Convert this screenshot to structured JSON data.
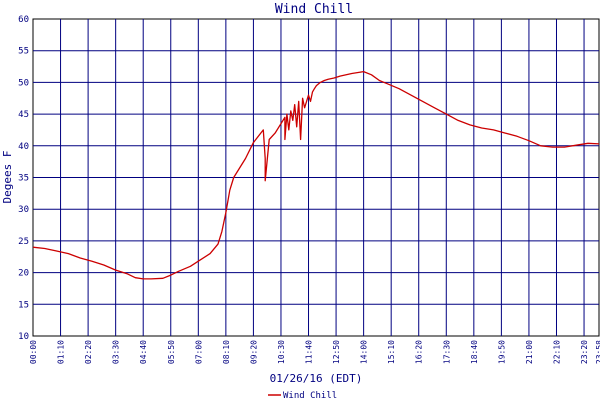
{
  "chart_data": {
    "type": "line",
    "title": "Wind Chill",
    "xlabel": "01/26/16 (EDT)",
    "ylabel": "Degees F",
    "ylim": [
      10,
      60
    ],
    "yticks": [
      10,
      15,
      20,
      25,
      30,
      35,
      40,
      45,
      50,
      55,
      60
    ],
    "xlim": [
      "00:00",
      "23:58"
    ],
    "xticks": [
      "00:00",
      "01:10",
      "02:20",
      "03:30",
      "04:40",
      "05:50",
      "07:00",
      "08:10",
      "09:20",
      "10:30",
      "11:40",
      "12:50",
      "14:00",
      "15:10",
      "16:20",
      "17:30",
      "18:40",
      "19:50",
      "21:00",
      "22:10",
      "23:20",
      "23:58"
    ],
    "grid": true,
    "legend_position": "bottom-center",
    "colors": {
      "series": "#cc0000",
      "grid": "#000080",
      "text": "#000080",
      "axis": "#000000"
    },
    "series": [
      {
        "name": "Wind Chill",
        "x": [
          "00:00",
          "00:30",
          "01:00",
          "01:30",
          "02:00",
          "02:30",
          "03:00",
          "03:30",
          "04:00",
          "04:20",
          "04:40",
          "05:00",
          "05:30",
          "05:50",
          "06:10",
          "06:40",
          "07:00",
          "07:30",
          "07:50",
          "08:00",
          "08:10",
          "08:20",
          "08:30",
          "08:45",
          "09:00",
          "09:20",
          "09:45",
          "09:50",
          "09:50",
          "10:00",
          "10:15",
          "10:30",
          "10:40",
          "10:40",
          "10:45",
          "10:50",
          "10:55",
          "11:00",
          "11:05",
          "11:10",
          "11:15",
          "11:20",
          "11:25",
          "11:30",
          "11:40",
          "11:45",
          "11:50",
          "11:55",
          "12:00",
          "12:10",
          "12:20",
          "12:30",
          "12:45",
          "13:00",
          "13:30",
          "14:00",
          "14:20",
          "14:40",
          "15:00",
          "15:30",
          "16:00",
          "16:30",
          "17:00",
          "17:30",
          "18:00",
          "18:30",
          "19:00",
          "19:30",
          "20:00",
          "20:30",
          "21:00",
          "21:30",
          "22:00",
          "22:30",
          "23:00",
          "23:30",
          "23:58"
        ],
        "values": [
          24,
          23.8,
          23.4,
          23,
          22.3,
          21.8,
          21.2,
          20.4,
          19.8,
          19.2,
          19,
          19,
          19.1,
          19.6,
          20.2,
          21,
          21.8,
          23,
          24.5,
          26.5,
          29.5,
          33,
          35,
          36.5,
          38,
          40.5,
          42.5,
          38,
          34.5,
          41,
          42,
          43.5,
          44.5,
          41,
          45,
          42.5,
          45.5,
          44,
          46.5,
          43,
          47,
          41,
          47.5,
          46,
          48,
          47,
          48.5,
          49,
          49.5,
          50,
          50.3,
          50.5,
          50.7,
          51,
          51.4,
          51.7,
          51.2,
          50.3,
          49.8,
          49,
          48,
          47,
          46,
          45,
          44,
          43.3,
          42.8,
          42.5,
          42,
          41.5,
          40.8,
          40,
          39.8,
          39.8,
          40.1,
          40.4,
          40.3
        ]
      }
    ]
  }
}
